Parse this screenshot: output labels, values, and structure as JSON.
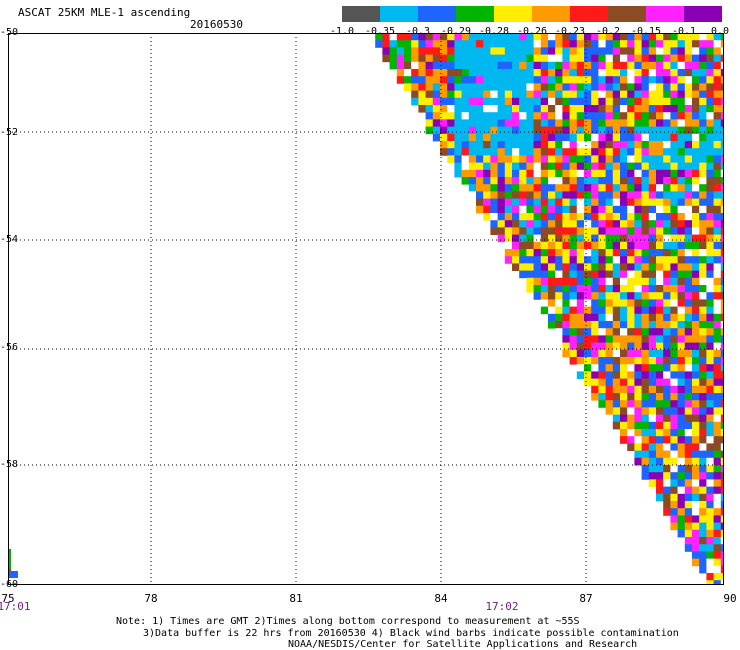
{
  "header": {
    "title": "ASCAT 25KM MLE-1 ascending",
    "date": "20160530"
  },
  "legend": {
    "labels": [
      "-1.0",
      "-0.35",
      "-0.3",
      "-0.29",
      "-0.28",
      "-0.26",
      "-0.23",
      "-0.2",
      "-0.15",
      "-0.1",
      "0.0"
    ],
    "colors": [
      "#555555",
      "#00b8f0",
      "#1e64ff",
      "#00b400",
      "#ffee00",
      "#ff9a00",
      "#ff1a1a",
      "#8b4b25",
      "#ff22ff",
      "#8a00b4"
    ]
  },
  "axes": {
    "y_labels": [
      "-50",
      "-52",
      "-54",
      "-56",
      "-58",
      "-60"
    ],
    "x_labels": [
      "75",
      "78",
      "81",
      "84",
      "87",
      "90"
    ],
    "x_range": [
      75,
      90
    ],
    "y_range": [
      -60,
      -50
    ],
    "grid": "dotted",
    "time_labels": [
      {
        "text": "17:01",
        "lon": 75
      },
      {
        "text": "17:02",
        "lon": 86.2
      }
    ]
  },
  "footer": {
    "line1": "Note: 1) Times are GMT 2)Times along bottom correspond to measurement at ~55S",
    "line2": "3)Data buffer is 22 hrs from 20160530 4) Black wind barbs indicate possible contamination",
    "line3": "NOAA/NESDIS/Center for Satellite Applications and Research"
  }
}
